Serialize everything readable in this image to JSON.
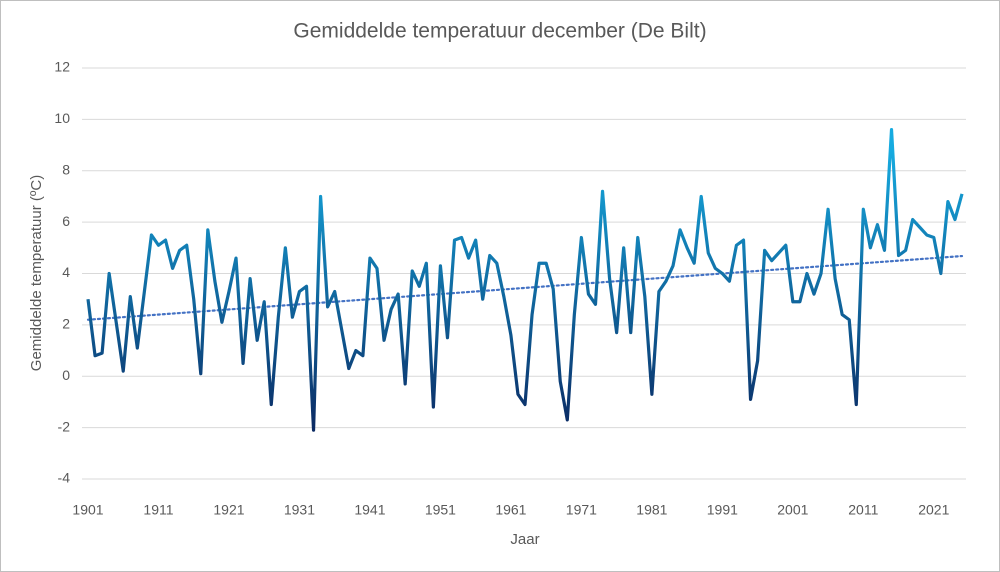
{
  "chart_data": {
    "type": "line",
    "title": "Gemiddelde temperatuur december (De Bilt)",
    "x_label": "Jaar",
    "y_label": "Gemiddelde temperatuur (ºC)",
    "x": [
      1901,
      1902,
      1903,
      1904,
      1905,
      1906,
      1907,
      1908,
      1909,
      1910,
      1911,
      1912,
      1913,
      1914,
      1915,
      1916,
      1917,
      1918,
      1919,
      1920,
      1921,
      1922,
      1923,
      1924,
      1925,
      1926,
      1927,
      1928,
      1929,
      1930,
      1931,
      1932,
      1933,
      1934,
      1935,
      1936,
      1937,
      1938,
      1939,
      1940,
      1941,
      1942,
      1943,
      1944,
      1945,
      1946,
      1947,
      1948,
      1949,
      1950,
      1951,
      1952,
      1953,
      1954,
      1955,
      1956,
      1957,
      1958,
      1959,
      1960,
      1961,
      1962,
      1963,
      1964,
      1965,
      1966,
      1967,
      1968,
      1969,
      1970,
      1971,
      1972,
      1973,
      1974,
      1975,
      1976,
      1977,
      1978,
      1979,
      1980,
      1981,
      1982,
      1983,
      1984,
      1985,
      1986,
      1987,
      1988,
      1989,
      1990,
      1991,
      1992,
      1993,
      1994,
      1995,
      1996,
      1997,
      1998,
      1999,
      2000,
      2001,
      2002,
      2003,
      2004,
      2005,
      2006,
      2007,
      2008,
      2009,
      2010,
      2011,
      2012,
      2013,
      2014,
      2015,
      2016,
      2017,
      2018,
      2019,
      2020,
      2021,
      2022,
      2023,
      2024,
      2025
    ],
    "values": [
      3.0,
      0.8,
      0.9,
      4.0,
      2.1,
      0.2,
      3.1,
      1.1,
      3.3,
      5.5,
      5.1,
      5.3,
      4.2,
      4.9,
      5.1,
      3.0,
      0.1,
      5.7,
      3.7,
      2.1,
      3.3,
      4.6,
      0.5,
      3.8,
      1.4,
      2.9,
      -1.1,
      2.3,
      5.0,
      2.3,
      3.3,
      3.5,
      -2.1,
      7.0,
      2.7,
      3.3,
      1.8,
      0.3,
      1.0,
      0.8,
      4.6,
      4.2,
      1.4,
      2.6,
      3.2,
      -0.3,
      4.1,
      3.5,
      4.4,
      -1.2,
      4.3,
      1.5,
      5.3,
      5.4,
      4.6,
      5.3,
      3.0,
      4.7,
      4.4,
      3.1,
      1.6,
      -0.7,
      -1.1,
      2.4,
      4.4,
      4.4,
      3.4,
      -0.2,
      -1.7,
      2.4,
      5.4,
      3.2,
      2.8,
      7.2,
      3.8,
      1.7,
      5.0,
      1.7,
      5.4,
      3.1,
      -0.7,
      3.3,
      3.7,
      4.3,
      5.7,
      5.0,
      4.4,
      7.0,
      4.8,
      4.2,
      4.0,
      3.7,
      5.1,
      5.3,
      -0.9,
      0.6,
      4.9,
      4.5,
      4.8,
      5.1,
      2.9,
      2.9,
      4.0,
      3.2,
      4.0,
      6.5,
      3.8,
      2.4,
      2.2,
      -1.1,
      6.5,
      5.0,
      5.9,
      4.9,
      9.6,
      4.7,
      4.9,
      6.1,
      5.8,
      5.5,
      5.4,
      4.0,
      6.8,
      6.1,
      7.1
    ],
    "colors": [
      "#0b2a63",
      "#16abe0"
    ],
    "trendline": true,
    "trend_color": "#4472c4",
    "xlim": [
      1901,
      2025
    ],
    "xticks": [
      1901,
      1911,
      1921,
      1931,
      1941,
      1951,
      1961,
      1971,
      1981,
      1991,
      2001,
      2011,
      2021
    ],
    "ylim": [
      -4,
      12
    ],
    "yticks": [
      -4,
      -2,
      0,
      2,
      4,
      6,
      8,
      10,
      12
    ],
    "grid": true
  }
}
